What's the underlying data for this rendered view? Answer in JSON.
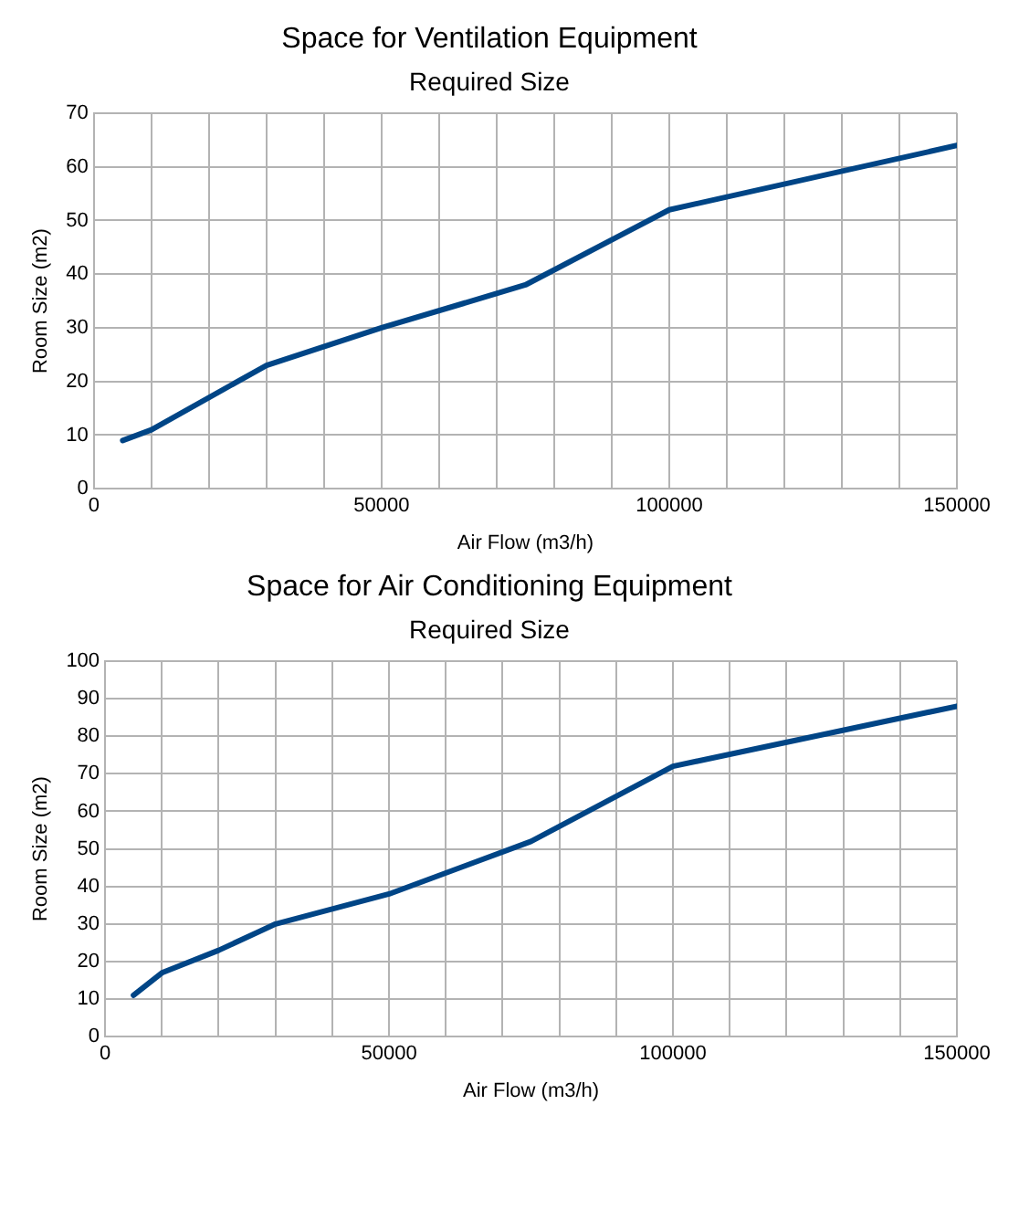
{
  "chart_data": [
    {
      "type": "line",
      "title": "Space for Ventilation Equipment",
      "subtitle": "Required Size",
      "xlabel": "Air Flow (m3/h)",
      "ylabel": "Room Size (m2)",
      "x": [
        5000,
        10000,
        30000,
        50000,
        75000,
        100000,
        150000
      ],
      "series": [
        {
          "color": "#004586",
          "values": [
            9,
            11,
            23,
            30,
            38,
            52,
            64
          ]
        }
      ],
      "xlim": [
        0,
        150000
      ],
      "xticks": [
        0,
        {
          "value": 10000,
          "label": null
        },
        {
          "value": 20000,
          "label": null
        },
        {
          "value": 30000,
          "label": null
        },
        {
          "value": 40000,
          "label": null
        },
        50000,
        {
          "value": 60000,
          "label": null
        },
        {
          "value": 70000,
          "label": null
        },
        {
          "value": 80000,
          "label": null
        },
        {
          "value": 90000,
          "label": null
        },
        100000,
        {
          "value": 110000,
          "label": null
        },
        {
          "value": 120000,
          "label": null
        },
        {
          "value": 130000,
          "label": null
        },
        {
          "value": 140000,
          "label": null
        },
        150000
      ],
      "ylim": [
        0,
        70
      ],
      "yticks": [
        0,
        10,
        20,
        30,
        40,
        50,
        60,
        70
      ],
      "grid": true,
      "legend": false,
      "marker": "none",
      "line_style": "solid"
    },
    {
      "type": "line",
      "title": "Space for Air Conditioning Equipment",
      "subtitle": "Required Size",
      "xlabel": "Air Flow (m3/h)",
      "ylabel": "Room Size (m2)",
      "x": [
        5000,
        10000,
        20000,
        30000,
        50000,
        75000,
        100000,
        150000
      ],
      "series": [
        {
          "color": "#004586",
          "values": [
            11,
            17,
            23,
            30,
            38,
            52,
            72,
            88
          ]
        }
      ],
      "xlim": [
        0,
        150000
      ],
      "xticks": [
        0,
        {
          "value": 10000,
          "label": null
        },
        {
          "value": 20000,
          "label": null
        },
        {
          "value": 30000,
          "label": null
        },
        {
          "value": 40000,
          "label": null
        },
        50000,
        {
          "value": 60000,
          "label": null
        },
        {
          "value": 70000,
          "label": null
        },
        {
          "value": 80000,
          "label": null
        },
        {
          "value": 90000,
          "label": null
        },
        100000,
        {
          "value": 110000,
          "label": null
        },
        {
          "value": 120000,
          "label": null
        },
        {
          "value": 130000,
          "label": null
        },
        {
          "value": 140000,
          "label": null
        },
        150000
      ],
      "ylim": [
        0,
        100
      ],
      "yticks": [
        0,
        10,
        20,
        30,
        40,
        50,
        60,
        70,
        80,
        90,
        100
      ],
      "grid": true,
      "legend": false,
      "marker": "none",
      "line_style": "solid"
    }
  ]
}
